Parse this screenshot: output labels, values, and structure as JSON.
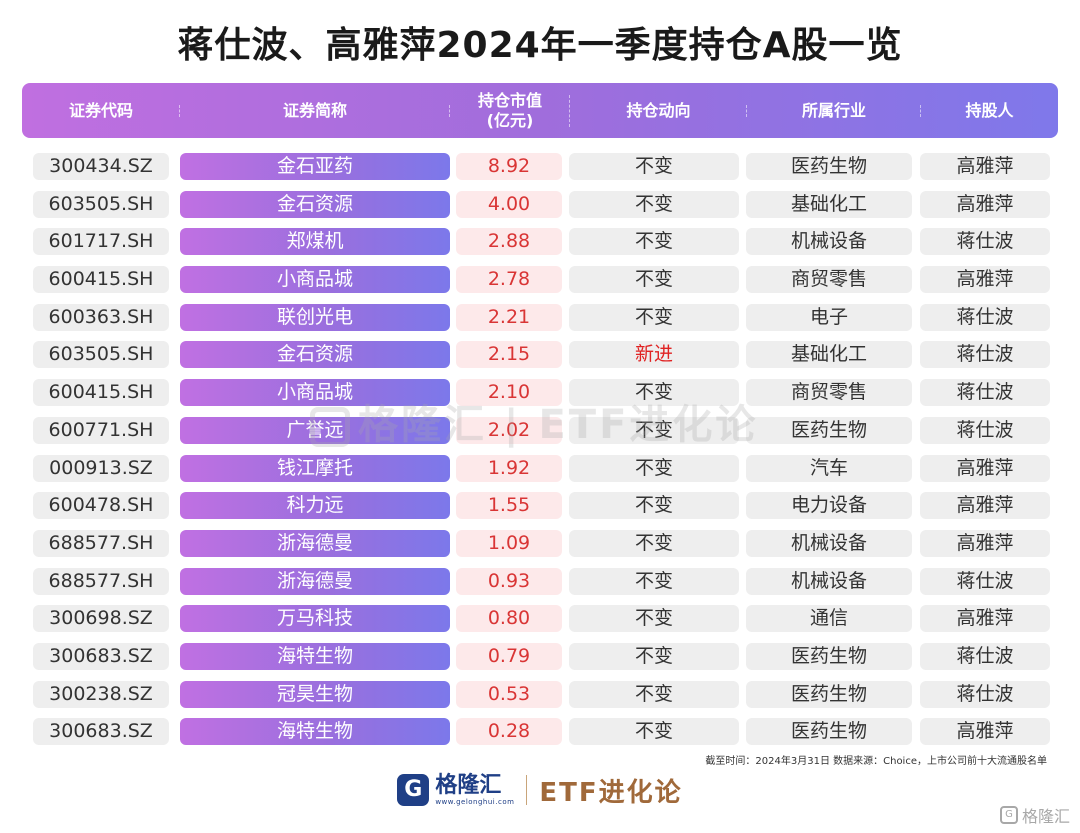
{
  "title": "蒋仕波、高雅萍2024年一季度持仓A股一览",
  "columns": {
    "code": "证券代码",
    "name": "证券简称",
    "value_line1": "持仓市值",
    "value_line2": "(亿元)",
    "action": "持仓动向",
    "industry": "所属行业",
    "holder": "持股人"
  },
  "rows": [
    {
      "code": "300434.SZ",
      "name": "金石亚药",
      "value": "8.92",
      "action": "不变",
      "industry": "医药生物",
      "holder": "高雅萍"
    },
    {
      "code": "603505.SH",
      "name": "金石资源",
      "value": "4.00",
      "action": "不变",
      "industry": "基础化工",
      "holder": "高雅萍"
    },
    {
      "code": "601717.SH",
      "name": "郑煤机",
      "value": "2.88",
      "action": "不变",
      "industry": "机械设备",
      "holder": "蒋仕波"
    },
    {
      "code": "600415.SH",
      "name": "小商品城",
      "value": "2.78",
      "action": "不变",
      "industry": "商贸零售",
      "holder": "高雅萍"
    },
    {
      "code": "600363.SH",
      "name": "联创光电",
      "value": "2.21",
      "action": "不变",
      "industry": "电子",
      "holder": "蒋仕波"
    },
    {
      "code": "603505.SH",
      "name": "金石资源",
      "value": "2.15",
      "action": "新进",
      "industry": "基础化工",
      "holder": "蒋仕波"
    },
    {
      "code": "600415.SH",
      "name": "小商品城",
      "value": "2.10",
      "action": "不变",
      "industry": "商贸零售",
      "holder": "蒋仕波"
    },
    {
      "code": "600771.SH",
      "name": "广誉远",
      "value": "2.02",
      "action": "不变",
      "industry": "医药生物",
      "holder": "蒋仕波"
    },
    {
      "code": "000913.SZ",
      "name": "钱江摩托",
      "value": "1.92",
      "action": "不变",
      "industry": "汽车",
      "holder": "高雅萍"
    },
    {
      "code": "600478.SH",
      "name": "科力远",
      "value": "1.55",
      "action": "不变",
      "industry": "电力设备",
      "holder": "高雅萍"
    },
    {
      "code": "688577.SH",
      "name": "浙海德曼",
      "value": "1.09",
      "action": "不变",
      "industry": "机械设备",
      "holder": "高雅萍"
    },
    {
      "code": "688577.SH",
      "name": "浙海德曼",
      "value": "0.93",
      "action": "不变",
      "industry": "机械设备",
      "holder": "蒋仕波"
    },
    {
      "code": "300698.SZ",
      "name": "万马科技",
      "value": "0.80",
      "action": "不变",
      "industry": "通信",
      "holder": "高雅萍"
    },
    {
      "code": "300683.SZ",
      "name": "海特生物",
      "value": "0.79",
      "action": "不变",
      "industry": "医药生物",
      "holder": "蒋仕波"
    },
    {
      "code": "300238.SZ",
      "name": "冠昊生物",
      "value": "0.53",
      "action": "不变",
      "industry": "医药生物",
      "holder": "蒋仕波"
    },
    {
      "code": "300683.SZ",
      "name": "海特生物",
      "value": "0.28",
      "action": "不变",
      "industry": "医药生物",
      "holder": "高雅萍"
    }
  ],
  "watermark": "格隆汇 | ETF进化论",
  "source_note": "截至时间：2024年3月31日 数据来源：Choice，上市公司前十大流通股名单",
  "footer": {
    "logo_letter": "G",
    "logo_name": "格隆汇",
    "logo_url": "www.gelonghui.com",
    "brand": "ETF进化论"
  },
  "corner_mark": {
    "icon": "G",
    "text": "格隆汇"
  },
  "colors": {
    "header_start": "#c06fe0",
    "header_end": "#7f78ea",
    "value_text": "#d93535",
    "new_action": "#e02222",
    "brand_blue": "#1f3f86",
    "brand_brown": "#a0693a"
  }
}
